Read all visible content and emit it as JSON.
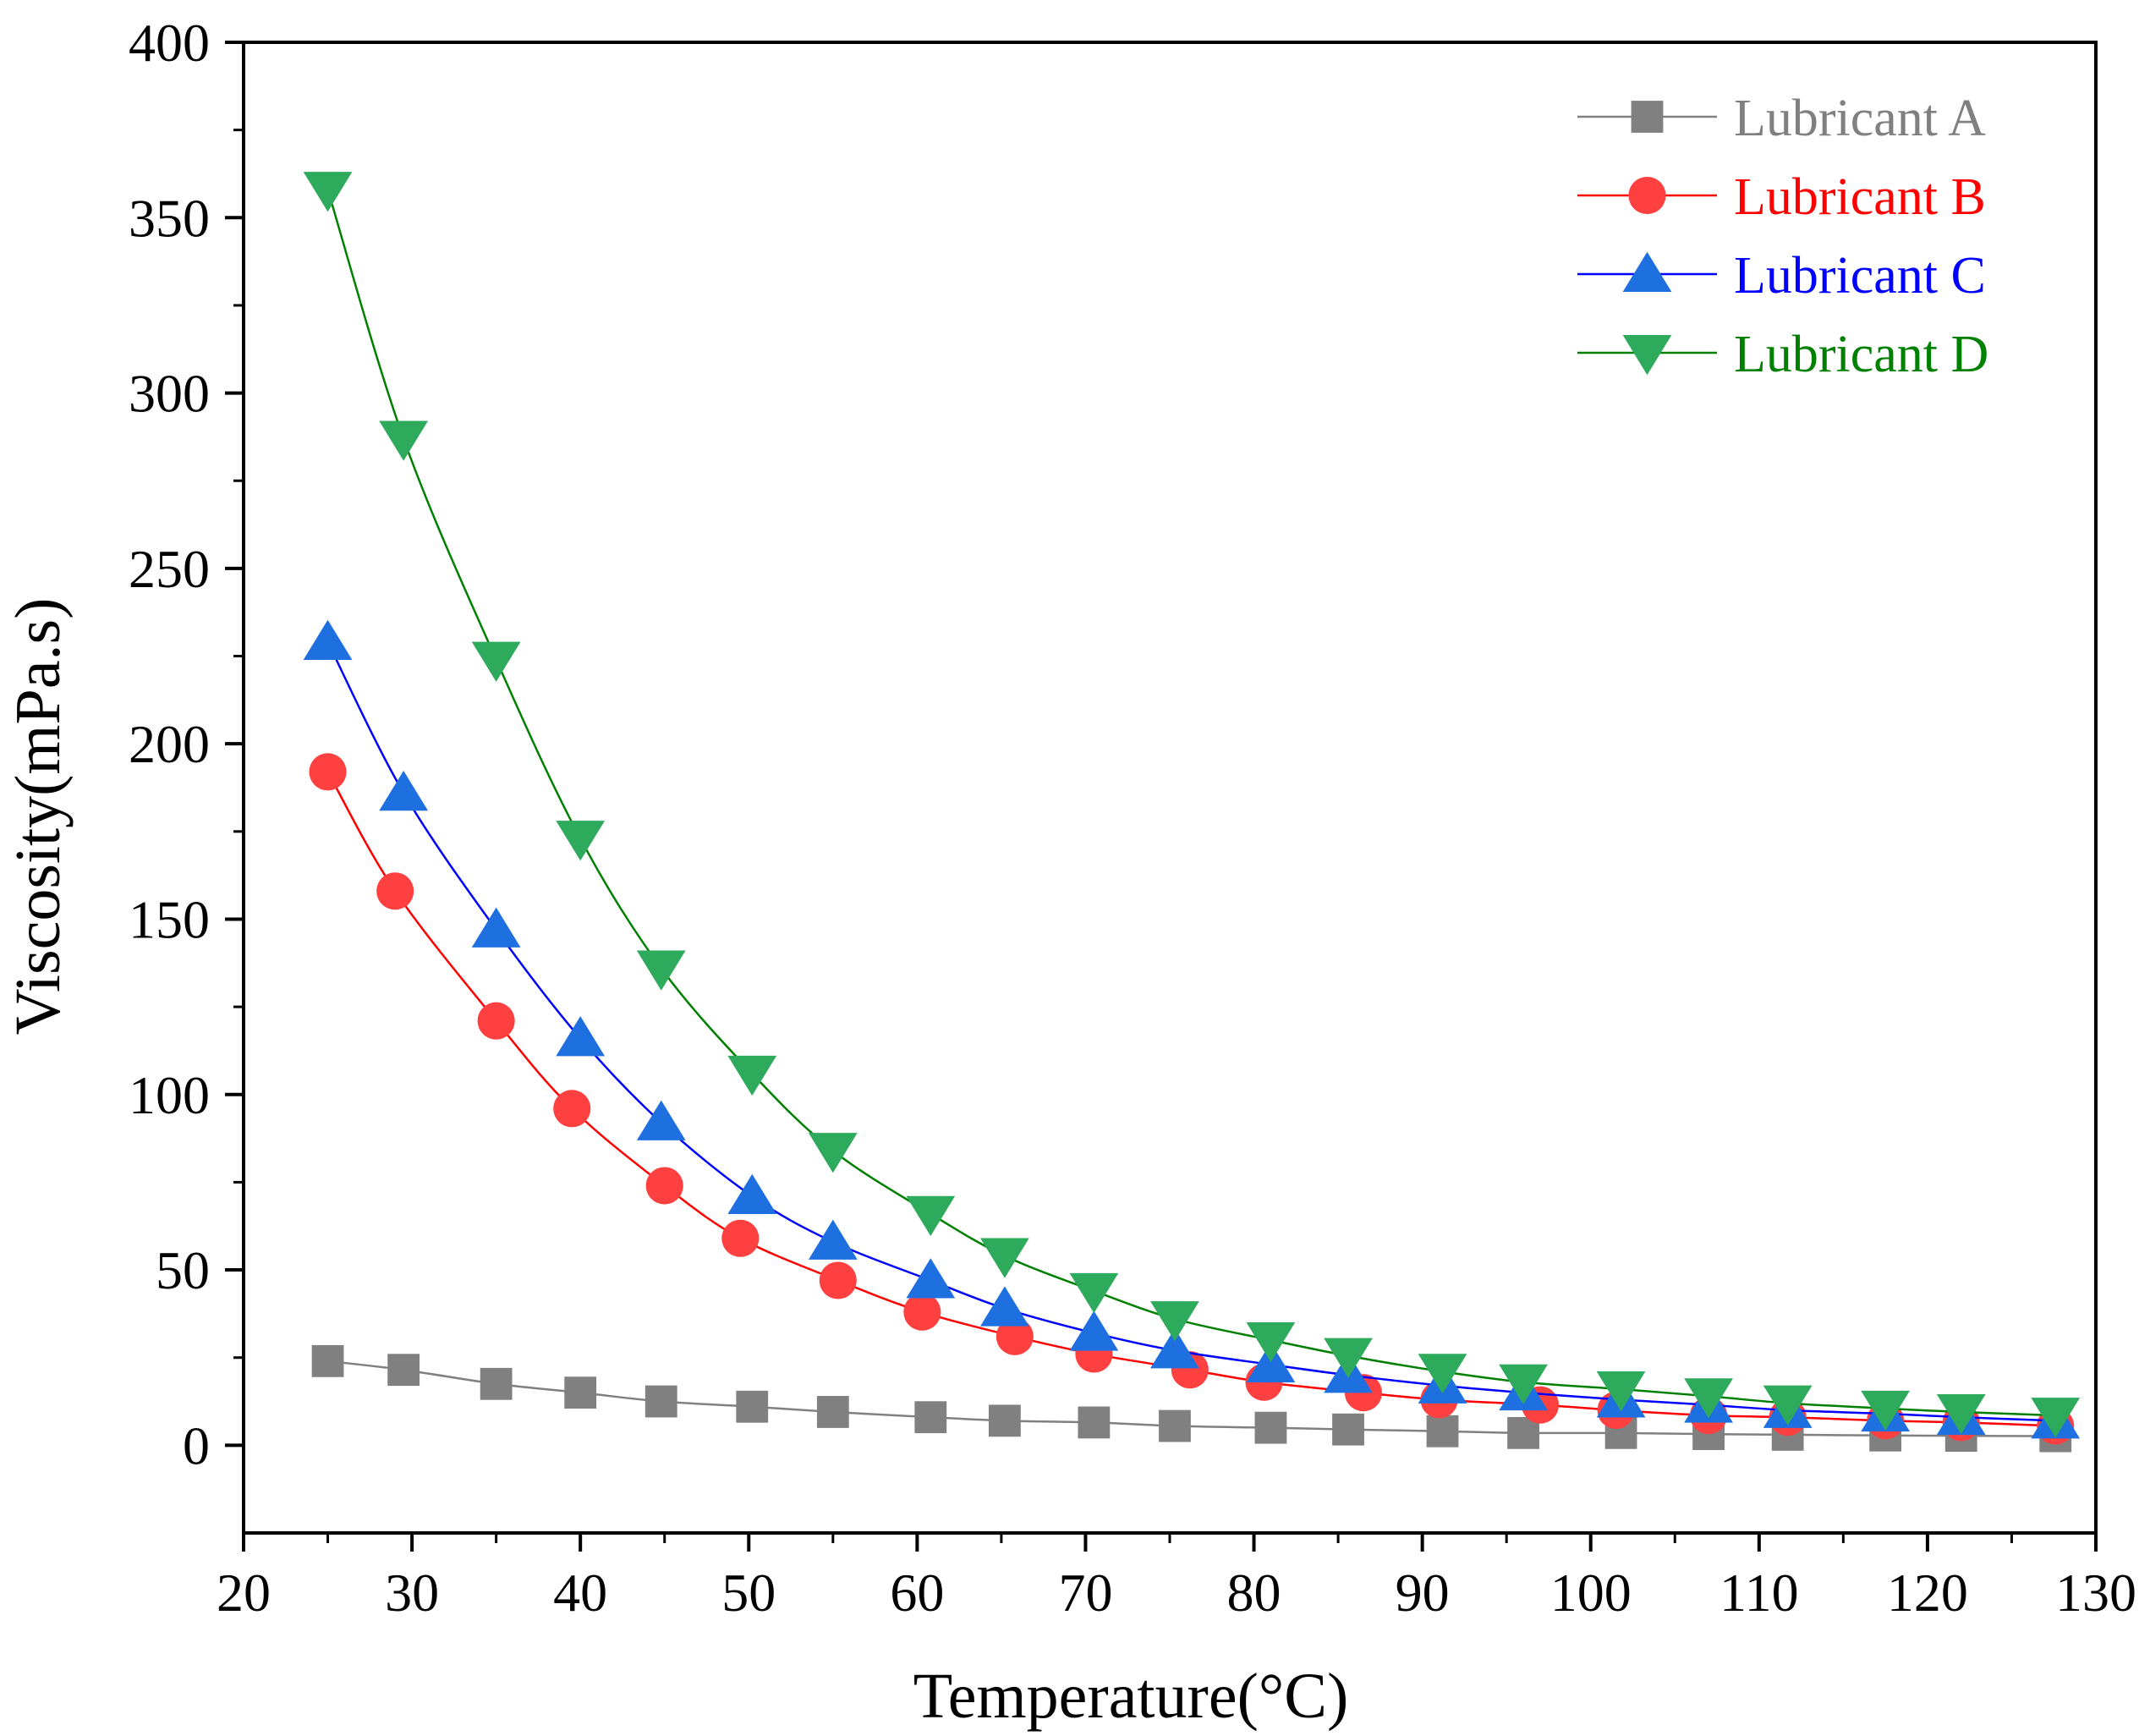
{
  "chart_data": {
    "type": "line",
    "title": "",
    "xlabel": "Temperature(°C)",
    "ylabel": "Viscosity(mPa.s)",
    "xlim": [
      20,
      130
    ],
    "ylim": [
      -25,
      400
    ],
    "xticks": [
      20,
      30,
      40,
      50,
      60,
      70,
      80,
      90,
      100,
      110,
      120,
      130
    ],
    "yticks": [
      0,
      50,
      100,
      150,
      200,
      250,
      300,
      350,
      400
    ],
    "legend_position": "top-right",
    "series": [
      {
        "name": "Lubricant A",
        "color": "#808080",
        "marker": "square",
        "x": [
          25,
          29.5,
          35,
          40,
          44.8,
          50.2,
          55,
          60.8,
          65.2,
          70.5,
          75.3,
          81,
          85.6,
          91.2,
          96,
          101.8,
          107,
          111.7,
          117.5,
          122,
          127.6
        ],
        "y": [
          24,
          21.5,
          17.5,
          15,
          12.5,
          11,
          9.5,
          8,
          7,
          6.5,
          5.5,
          5,
          4.5,
          4,
          3.5,
          3.5,
          3.2,
          3,
          2.8,
          2.7,
          2.6
        ]
      },
      {
        "name": "Lubricant B",
        "color": "#ff0000",
        "marker": "circle",
        "x": [
          25,
          29,
          35,
          39.5,
          45,
          49.5,
          55.3,
          60.3,
          65.8,
          70.5,
          76.2,
          80.6,
          86.5,
          91,
          97,
          101.5,
          107,
          111.7,
          117.5,
          122,
          127.6
        ],
        "y": [
          192,
          158,
          121,
          96,
          74,
          59,
          47,
          38,
          31,
          26,
          21.5,
          18,
          15,
          13,
          11.5,
          10,
          8.5,
          8,
          7,
          6.5,
          5.5
        ]
      },
      {
        "name": "Lubricant C",
        "color": "#0000ff",
        "marker": "triangle-up",
        "x": [
          25,
          29.5,
          35,
          40,
          44.8,
          50.2,
          55,
          60.8,
          65.2,
          70.5,
          75.3,
          81,
          85.6,
          91.2,
          96,
          101.8,
          107,
          111.7,
          117.5,
          122,
          127.6
        ],
        "y": [
          229,
          186,
          147,
          116,
          92,
          71,
          58,
          47,
          39,
          32,
          27,
          23,
          20,
          17,
          15,
          13,
          11.5,
          10,
          9,
          8,
          7
        ]
      },
      {
        "name": "Lubricant D",
        "color": "#008000",
        "marker": "triangle-down",
        "x": [
          25,
          29.5,
          35,
          40,
          44.8,
          50.2,
          55,
          60.8,
          65.2,
          70.5,
          75.3,
          81,
          85.6,
          91.2,
          96,
          101.8,
          107,
          111.7,
          117.5,
          122,
          127.6
        ],
        "y": [
          358,
          287,
          224,
          173,
          136,
          106,
          84,
          66,
          54,
          44,
          36,
          30,
          25.5,
          21,
          18,
          16,
          14,
          12,
          10.5,
          9.5,
          8.5
        ]
      }
    ]
  },
  "styles": {
    "marker_color_A": "#808080",
    "marker_color_B": "#ff4040",
    "marker_color_C": "#1e6fe0",
    "marker_color_D": "#2eaa5c",
    "legend_text_color_A": "#808080",
    "legend_text_color_B": "#ff0000",
    "legend_text_color_C": "#0000ff",
    "legend_text_color_D": "#008000"
  }
}
